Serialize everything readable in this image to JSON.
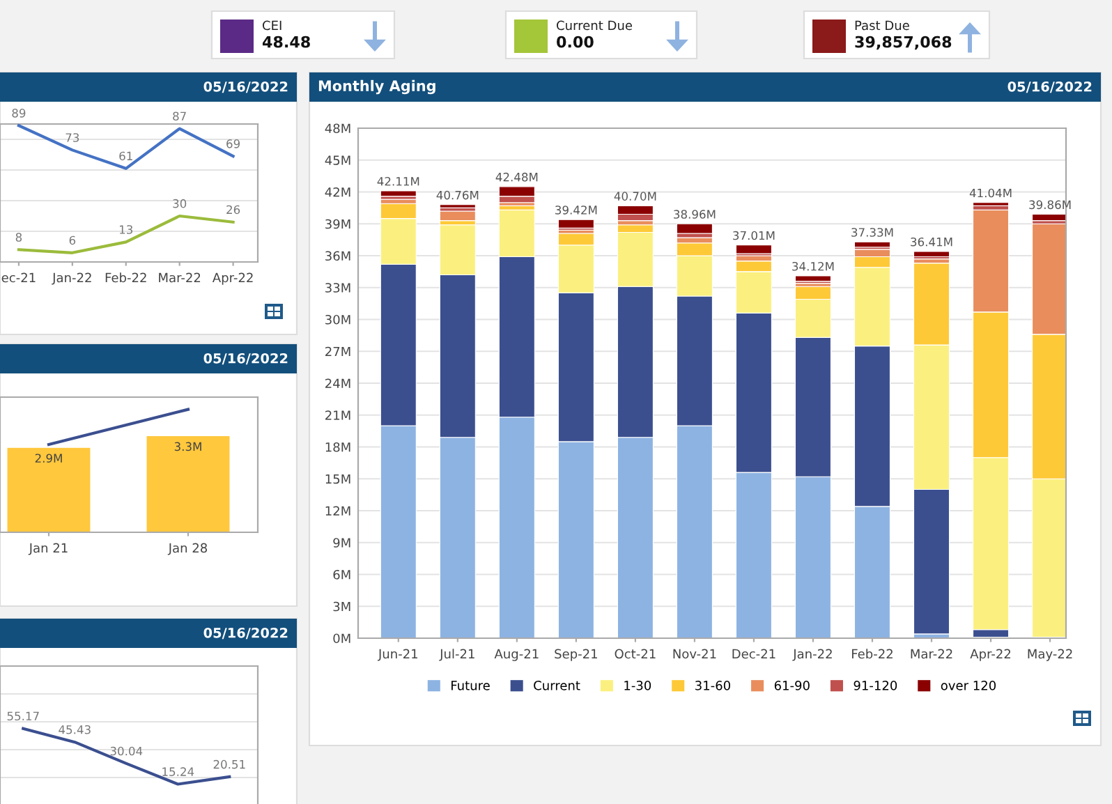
{
  "chart_data": [
    {
      "type": "other",
      "annotations": [
        "CEI",
        "48.48",
        "Current Due",
        "0.00",
        "Past Due",
        "39,857,068"
      ]
    },
    {
      "type": "line",
      "annotations": [
        "05/16/2022"
      ],
      "categories": [
        "ec-21",
        "Jan-22",
        "Feb-22",
        "Mar-22",
        "Apr-22"
      ],
      "series": [
        {
          "color": "#4472c4",
          "values": [
            89,
            73,
            61,
            87,
            69
          ]
        },
        {
          "color": "#9bbb3b",
          "values": [
            8,
            6,
            13,
            30,
            26
          ]
        }
      ],
      "data_labels": true,
      "ylim": [
        0,
        90
      ],
      "yticks": [
        {
          "value": 20,
          "label": null
        },
        {
          "value": 40,
          "label": null
        },
        {
          "value": 60,
          "label": null
        },
        {
          "value": 80,
          "label": null
        }
      ],
      "grid": "y",
      "tick_labels": "x",
      "marker": "none"
    },
    {
      "type": "bar",
      "title": "Monthly Aging",
      "annotations": [
        "05/16/2022"
      ],
      "stacked": true,
      "categories": [
        "Jun-21",
        "Jul-21",
        "Aug-21",
        "Sep-21",
        "Oct-21",
        "Nov-21",
        "Dec-21",
        "Jan-22",
        "Feb-22",
        "Mar-22",
        "Apr-22",
        "May-22"
      ],
      "series": [
        {
          "name": "Future",
          "color": "#8db3e2",
          "values": [
            20.0,
            18.9,
            20.8,
            18.5,
            18.9,
            20.0,
            15.6,
            15.2,
            12.4,
            0.4,
            0.1,
            0.1
          ]
        },
        {
          "name": "Current",
          "color": "#3b4f8f",
          "values": [
            15.2,
            15.3,
            15.1,
            14.0,
            14.2,
            12.2,
            15.0,
            13.1,
            15.1,
            13.6,
            0.7,
            0
          ]
        },
        {
          "name": "1-30",
          "color": "#fbf07f",
          "values": [
            4.3,
            4.7,
            4.4,
            4.5,
            5.1,
            3.8,
            3.9,
            3.6,
            7.4,
            13.6,
            16.2,
            14.9
          ]
        },
        {
          "name": "31-60",
          "color": "#fec937",
          "values": [
            1.4,
            0.4,
            0.4,
            1.1,
            0.7,
            1.2,
            1.0,
            1.2,
            1.0,
            7.7,
            13.7,
            13.6
          ]
        },
        {
          "name": "61-90",
          "color": "#e98d5d",
          "values": [
            0.4,
            0.9,
            0.3,
            0.3,
            0.4,
            0.5,
            0.5,
            0.3,
            0.7,
            0.4,
            9.6,
            10.4
          ]
        },
        {
          "name": "91-120",
          "color": "#c0504d",
          "values": [
            0.3,
            0.3,
            0.6,
            0.2,
            0.6,
            0.4,
            0.2,
            0.2,
            0.2,
            0.2,
            0.4,
            0.3
          ]
        },
        {
          "name": "over 120",
          "color": "#8b0000",
          "values": [
            0.5,
            0.3,
            0.9,
            0.8,
            0.8,
            0.9,
            0.8,
            0.5,
            0.5,
            0.5,
            0.3,
            0.6
          ]
        }
      ],
      "totals": [
        "42.11M",
        "40.76M",
        "42.48M",
        "39.42M",
        "40.70M",
        "38.96M",
        "37.01M",
        "34.12M",
        "37.33M",
        "36.41M",
        "41.04M",
        "39.86M"
      ],
      "ylim": [
        0,
        48
      ],
      "yticks": [
        {
          "value": 0,
          "label": "0M"
        },
        {
          "value": 3,
          "label": "3M"
        },
        {
          "value": 6,
          "label": "6M"
        },
        {
          "value": 9,
          "label": "9M"
        },
        {
          "value": 12,
          "label": "12M"
        },
        {
          "value": 15,
          "label": "15M"
        },
        {
          "value": 18,
          "label": "18M"
        },
        {
          "value": 21,
          "label": "21M"
        },
        {
          "value": 24,
          "label": "24M"
        },
        {
          "value": 27,
          "label": "27M"
        },
        {
          "value": 30,
          "label": "30M"
        },
        {
          "value": 33,
          "label": "33M"
        },
        {
          "value": 36,
          "label": "36M"
        },
        {
          "value": 39,
          "label": "39M"
        },
        {
          "value": 42,
          "label": "42M"
        },
        {
          "value": 45,
          "label": "45M"
        },
        {
          "value": 48,
          "label": "48M"
        }
      ],
      "grid": "y",
      "legend": "bottom"
    },
    {
      "type": "bar",
      "annotations": [
        "05/16/2022"
      ],
      "categories": [
        "Jan 21",
        "Jan 28"
      ],
      "series": [
        {
          "type": "bar",
          "color": "#ffc83d",
          "values": [
            2.9,
            3.3
          ],
          "value_labels": [
            "2.9M",
            "3.3M"
          ]
        },
        {
          "type": "line",
          "color": "#3b4f8f",
          "values": [
            3.0,
            4.2
          ]
        }
      ],
      "tick_labels": "x"
    },
    {
      "type": "line",
      "annotations": [
        "05/16/2022"
      ],
      "categories": [
        null,
        null,
        null,
        null,
        null
      ],
      "series": [
        {
          "color": "#3b4f8f",
          "values": [
            55.17,
            45.43,
            30.04,
            15.24,
            20.51
          ]
        }
      ],
      "data_labels": true,
      "ylim": [
        0,
        100
      ],
      "yticks": [
        {
          "value": 20,
          "label": null
        },
        {
          "value": 40,
          "label": null
        },
        {
          "value": 60,
          "label": null
        },
        {
          "value": 80,
          "label": null
        }
      ],
      "grid": "y",
      "tick_labels": false,
      "marker": "none"
    }
  ]
}
